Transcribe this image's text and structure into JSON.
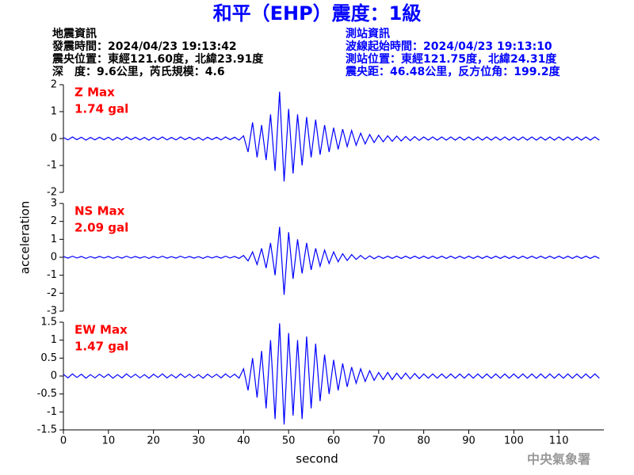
{
  "header": {
    "title": "和平（EHP）震度：1級",
    "left": [
      "地震資訊",
      "發震時間：2024/04/23 19:13:42",
      "震央位置：東經121.60度，北緯23.91度",
      "深　度：9.6公里，芮氏規模：4.6"
    ],
    "right": [
      "測站資訊",
      "波線起始時間：2024/04/23 19:13:10",
      "測站位置：東經121.75度，北緯24.31度",
      "震央距：46.48公里，反方位角：199.2度"
    ],
    "footer": "中央氣象署"
  },
  "chart_data": [
    {
      "type": "line",
      "annotations": [
        "Z Max",
        "1.74 gal"
      ],
      "color": "#0000ff",
      "xlim": [
        0,
        120
      ],
      "ylim": [
        -2,
        2
      ],
      "yticks": [
        -2,
        -1,
        0,
        1,
        2
      ],
      "x": [
        0,
        1,
        2,
        3,
        4,
        5,
        6,
        7,
        8,
        9,
        10,
        11,
        12,
        13,
        14,
        15,
        16,
        17,
        18,
        19,
        20,
        21,
        22,
        23,
        24,
        25,
        26,
        27,
        28,
        29,
        30,
        31,
        32,
        33,
        34,
        35,
        36,
        37,
        38,
        39,
        40,
        41,
        42,
        43,
        44,
        45,
        46,
        47,
        48,
        49,
        50,
        51,
        52,
        53,
        54,
        55,
        56,
        57,
        58,
        59,
        60,
        61,
        62,
        63,
        64,
        65,
        66,
        67,
        68,
        69,
        70,
        71,
        72,
        73,
        74,
        75,
        76,
        77,
        78,
        79,
        80,
        81,
        82,
        83,
        84,
        85,
        86,
        87,
        88,
        89,
        90,
        91,
        92,
        93,
        94,
        95,
        96,
        97,
        98,
        99,
        100,
        101,
        102,
        103,
        104,
        105,
        106,
        107,
        108,
        109,
        110,
        111,
        112,
        113,
        114,
        115,
        116,
        117,
        118,
        119
      ],
      "values": [
        0.04,
        -0.05,
        0.06,
        -0.04,
        0.05,
        -0.06,
        0.04,
        -0.05,
        0.05,
        -0.04,
        0.05,
        -0.06,
        0.04,
        -0.05,
        0.06,
        -0.04,
        0.05,
        -0.05,
        0.04,
        -0.06,
        0.05,
        -0.04,
        0.06,
        -0.05,
        0.04,
        -0.05,
        0.06,
        -0.04,
        0.05,
        -0.05,
        0.04,
        -0.06,
        0.05,
        -0.04,
        0.05,
        -0.05,
        0.06,
        -0.04,
        0.05,
        -0.06,
        0.1,
        -0.5,
        0.6,
        -0.7,
        0.5,
        -0.8,
        0.9,
        -1.2,
        1.74,
        -1.6,
        1.1,
        -1.3,
        0.9,
        -1.0,
        0.8,
        -0.7,
        0.7,
        -0.6,
        0.5,
        -0.5,
        0.4,
        -0.4,
        0.35,
        -0.3,
        0.3,
        -0.25,
        0.2,
        -0.2,
        0.15,
        -0.15,
        0.12,
        -0.12,
        0.1,
        -0.1,
        0.09,
        -0.09,
        0.08,
        -0.08,
        0.07,
        -0.07,
        0.06,
        -0.06,
        0.06,
        -0.06,
        0.06,
        -0.06,
        0.06,
        -0.06,
        0.06,
        -0.06,
        0.06,
        -0.06,
        0.06,
        -0.06,
        0.06,
        -0.06,
        0.06,
        -0.06,
        0.06,
        -0.06,
        0.06,
        -0.06,
        0.06,
        -0.06,
        0.06,
        -0.06,
        0.06,
        -0.06,
        0.06,
        -0.06,
        0.06,
        -0.06,
        0.06,
        -0.06,
        0.06,
        -0.06,
        0.06,
        -0.06,
        0.06,
        -0.06
      ]
    },
    {
      "type": "line",
      "annotations": [
        "NS Max",
        "2.09 gal"
      ],
      "color": "#0000ff",
      "ylabel": "acceleration",
      "xlim": [
        0,
        120
      ],
      "ylim": [
        -3,
        3
      ],
      "yticks": [
        -3,
        -2,
        -1,
        0,
        1,
        2,
        3
      ],
      "x": [
        0,
        1,
        2,
        3,
        4,
        5,
        6,
        7,
        8,
        9,
        10,
        11,
        12,
        13,
        14,
        15,
        16,
        17,
        18,
        19,
        20,
        21,
        22,
        23,
        24,
        25,
        26,
        27,
        28,
        29,
        30,
        31,
        32,
        33,
        34,
        35,
        36,
        37,
        38,
        39,
        40,
        41,
        42,
        43,
        44,
        45,
        46,
        47,
        48,
        49,
        50,
        51,
        52,
        53,
        54,
        55,
        56,
        57,
        58,
        59,
        60,
        61,
        62,
        63,
        64,
        65,
        66,
        67,
        68,
        69,
        70,
        71,
        72,
        73,
        74,
        75,
        76,
        77,
        78,
        79,
        80,
        81,
        82,
        83,
        84,
        85,
        86,
        87,
        88,
        89,
        90,
        91,
        92,
        93,
        94,
        95,
        96,
        97,
        98,
        99,
        100,
        101,
        102,
        103,
        104,
        105,
        106,
        107,
        108,
        109,
        110,
        111,
        112,
        113,
        114,
        115,
        116,
        117,
        118,
        119
      ],
      "values": [
        0.05,
        -0.05,
        0.06,
        -0.04,
        0.05,
        -0.06,
        0.04,
        -0.05,
        0.05,
        -0.04,
        0.05,
        -0.06,
        0.04,
        -0.05,
        0.06,
        -0.04,
        0.05,
        -0.05,
        0.04,
        -0.06,
        0.05,
        -0.04,
        0.06,
        -0.05,
        0.04,
        -0.05,
        0.06,
        -0.04,
        0.05,
        -0.05,
        0.04,
        -0.06,
        0.05,
        -0.04,
        0.05,
        -0.05,
        0.06,
        -0.04,
        0.05,
        -0.06,
        0.1,
        -0.2,
        0.3,
        -0.4,
        0.5,
        -0.6,
        0.8,
        -1.0,
        1.7,
        -2.09,
        1.4,
        -1.2,
        1.0,
        -0.9,
        0.8,
        -0.7,
        0.5,
        -0.5,
        0.4,
        -0.35,
        0.3,
        -0.25,
        0.2,
        -0.18,
        0.15,
        -0.12,
        0.1,
        -0.1,
        0.08,
        -0.08,
        0.06,
        -0.06,
        0.06,
        -0.06,
        0.06,
        -0.06,
        0.06,
        -0.06,
        0.06,
        -0.06,
        0.06,
        -0.06,
        0.06,
        -0.06,
        0.06,
        -0.06,
        0.06,
        -0.06,
        0.06,
        -0.06,
        0.06,
        -0.06,
        0.06,
        -0.06,
        0.06,
        -0.06,
        0.06,
        -0.06,
        0.06,
        -0.06,
        0.06,
        -0.06,
        0.06,
        -0.06,
        0.06,
        -0.06,
        0.06,
        -0.06,
        0.06,
        -0.06,
        0.06,
        -0.06,
        0.06,
        -0.06,
        0.06,
        -0.06,
        0.06,
        -0.06,
        0.06,
        -0.06
      ]
    },
    {
      "type": "line",
      "annotations": [
        "EW Max",
        "1.47 gal"
      ],
      "color": "#0000ff",
      "xlabel": "second",
      "xlim": [
        0,
        120
      ],
      "xticks": [
        0,
        10,
        20,
        30,
        40,
        50,
        60,
        70,
        80,
        90,
        100,
        110
      ],
      "ylim": [
        -1.5,
        1.5
      ],
      "yticks": [
        -1.5,
        -1,
        -0.5,
        0,
        0.5,
        1,
        1.5
      ],
      "x": [
        0,
        1,
        2,
        3,
        4,
        5,
        6,
        7,
        8,
        9,
        10,
        11,
        12,
        13,
        14,
        15,
        16,
        17,
        18,
        19,
        20,
        21,
        22,
        23,
        24,
        25,
        26,
        27,
        28,
        29,
        30,
        31,
        32,
        33,
        34,
        35,
        36,
        37,
        38,
        39,
        40,
        41,
        42,
        43,
        44,
        45,
        46,
        47,
        48,
        49,
        50,
        51,
        52,
        53,
        54,
        55,
        56,
        57,
        58,
        59,
        60,
        61,
        62,
        63,
        64,
        65,
        66,
        67,
        68,
        69,
        70,
        71,
        72,
        73,
        74,
        75,
        76,
        77,
        78,
        79,
        80,
        81,
        82,
        83,
        84,
        85,
        86,
        87,
        88,
        89,
        90,
        91,
        92,
        93,
        94,
        95,
        96,
        97,
        98,
        99,
        100,
        101,
        102,
        103,
        104,
        105,
        106,
        107,
        108,
        109,
        110,
        111,
        112,
        113,
        114,
        115,
        116,
        117,
        118,
        119
      ],
      "values": [
        0.05,
        -0.05,
        0.06,
        -0.04,
        0.05,
        -0.06,
        0.04,
        -0.05,
        0.05,
        -0.04,
        0.05,
        -0.06,
        0.04,
        -0.05,
        0.06,
        -0.04,
        0.05,
        -0.05,
        0.04,
        -0.06,
        0.05,
        -0.04,
        0.06,
        -0.05,
        0.04,
        -0.05,
        0.06,
        -0.04,
        0.05,
        -0.05,
        0.04,
        -0.06,
        0.05,
        -0.04,
        0.05,
        -0.05,
        0.06,
        -0.04,
        0.05,
        -0.06,
        0.2,
        -0.4,
        0.5,
        -0.6,
        0.7,
        -0.9,
        1.0,
        -1.2,
        1.47,
        -1.35,
        1.2,
        -1.1,
        1.0,
        -1.2,
        1.1,
        -0.9,
        0.9,
        -0.7,
        0.6,
        -0.5,
        0.45,
        -0.4,
        0.35,
        -0.3,
        0.25,
        -0.2,
        0.2,
        -0.15,
        0.15,
        -0.12,
        0.1,
        -0.1,
        0.1,
        -0.1,
        0.08,
        -0.08,
        0.08,
        -0.08,
        0.07,
        -0.07,
        0.06,
        -0.06,
        0.06,
        -0.06,
        0.06,
        -0.06,
        0.06,
        -0.06,
        0.06,
        -0.06,
        0.06,
        -0.06,
        0.06,
        -0.06,
        0.06,
        -0.06,
        0.06,
        -0.06,
        0.06,
        -0.06,
        0.06,
        -0.06,
        0.06,
        -0.06,
        0.06,
        -0.06,
        0.06,
        -0.06,
        0.06,
        -0.06,
        0.06,
        -0.06,
        0.06,
        -0.06,
        0.06,
        -0.06,
        0.06,
        -0.06,
        0.06,
        -0.06
      ]
    }
  ]
}
